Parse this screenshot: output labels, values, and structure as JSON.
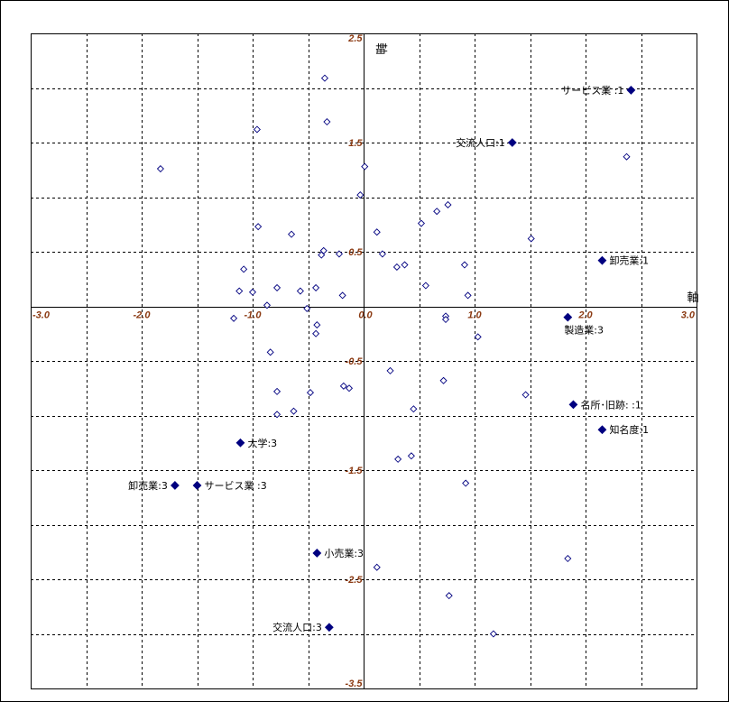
{
  "chart_data": {
    "type": "scatter",
    "xlim": [
      -3.0,
      3.0
    ],
    "ylim": [
      -3.5,
      2.5
    ],
    "grid": true,
    "xlabel": "軸",
    "ylabel": "軸",
    "x_ticks": [
      {
        "value": -3.0,
        "label": "-3.0"
      },
      {
        "value": -2.0,
        "label": "-2.0"
      },
      {
        "value": -1.0,
        "label": "-1.0"
      },
      {
        "value": 0.0,
        "label": "0.0"
      },
      {
        "value": 1.0,
        "label": "1.0"
      },
      {
        "value": 2.0,
        "label": "2.0"
      },
      {
        "value": 3.0,
        "label": "3.0"
      }
    ],
    "y_ticks": [
      {
        "value": 2.5,
        "label": "2.5"
      },
      {
        "value": 1.5,
        "label": "1.5"
      },
      {
        "value": 0.5,
        "label": "0.5"
      },
      {
        "value": -0.5,
        "label": "-0.5"
      },
      {
        "value": -1.5,
        "label": "-1.5"
      },
      {
        "value": -2.5,
        "label": "-2.5"
      },
      {
        "value": -3.5,
        "label": "-3.5"
      }
    ],
    "series": [
      {
        "marker": "filled-diamond",
        "color": "#000080",
        "points": [
          {
            "x": 2.41,
            "y": 1.98,
            "label": "サービス業 :1",
            "label_side": "left"
          },
          {
            "x": 1.34,
            "y": 1.5,
            "label": "交流人口:1",
            "label_side": "left"
          },
          {
            "x": 2.15,
            "y": 0.42,
            "label": "卸売業:1",
            "label_side": "right"
          },
          {
            "x": 1.84,
            "y": -0.1,
            "label": "製造業:3",
            "label_side": "below"
          },
          {
            "x": 1.89,
            "y": -0.9,
            "label": "名所･旧跡: :1",
            "label_side": "right"
          },
          {
            "x": 2.15,
            "y": -1.13,
            "label": "知名度:1",
            "label_side": "right"
          },
          {
            "x": -1.11,
            "y": -1.25,
            "label": "大学:3",
            "label_side": "right"
          },
          {
            "x": -1.7,
            "y": -1.64,
            "label": "卸売業:3",
            "label_side": "left"
          },
          {
            "x": -1.5,
            "y": -1.64,
            "label": "サービス業 :3",
            "label_side": "right"
          },
          {
            "x": -0.42,
            "y": -2.26,
            "label": "小売業:3",
            "label_side": "right"
          },
          {
            "x": -0.31,
            "y": -2.94,
            "label": "交流人口:3",
            "label_side": "left"
          }
        ]
      },
      {
        "marker": "open-diamond",
        "color": "#000080",
        "points": [
          {
            "x": -0.35,
            "y": 2.09
          },
          {
            "x": -0.33,
            "y": 1.69
          },
          {
            "x": -0.96,
            "y": 1.62
          },
          {
            "x": -1.83,
            "y": 1.26
          },
          {
            "x": 0.01,
            "y": 1.28
          },
          {
            "x": -0.03,
            "y": 1.02
          },
          {
            "x": 2.37,
            "y": 1.37
          },
          {
            "x": -0.95,
            "y": 0.73
          },
          {
            "x": -0.65,
            "y": 0.66
          },
          {
            "x": 0.52,
            "y": 0.76
          },
          {
            "x": 0.66,
            "y": 0.87
          },
          {
            "x": 0.76,
            "y": 0.93
          },
          {
            "x": 0.12,
            "y": 0.68
          },
          {
            "x": 1.51,
            "y": 0.62
          },
          {
            "x": -0.36,
            "y": 0.51
          },
          {
            "x": -0.38,
            "y": 0.47
          },
          {
            "x": -0.22,
            "y": 0.48
          },
          {
            "x": 0.17,
            "y": 0.48
          },
          {
            "x": 0.3,
            "y": 0.36
          },
          {
            "x": 0.37,
            "y": 0.38
          },
          {
            "x": 0.91,
            "y": 0.38
          },
          {
            "x": -1.08,
            "y": 0.34
          },
          {
            "x": -1.12,
            "y": 0.14
          },
          {
            "x": -1.0,
            "y": 0.13
          },
          {
            "x": -0.78,
            "y": 0.17
          },
          {
            "x": -0.57,
            "y": 0.14
          },
          {
            "x": -0.43,
            "y": 0.17
          },
          {
            "x": -0.19,
            "y": 0.1
          },
          {
            "x": 0.56,
            "y": 0.19
          },
          {
            "x": 0.94,
            "y": 0.1
          },
          {
            "x": -0.87,
            "y": 0.01
          },
          {
            "x": -0.51,
            "y": -0.02
          },
          {
            "x": -1.17,
            "y": -0.11
          },
          {
            "x": 0.74,
            "y": -0.09
          },
          {
            "x": 0.74,
            "y": -0.12
          },
          {
            "x": -0.42,
            "y": -0.17
          },
          {
            "x": -0.43,
            "y": -0.25
          },
          {
            "x": 1.03,
            "y": -0.28
          },
          {
            "x": -0.84,
            "y": -0.42
          },
          {
            "x": 0.24,
            "y": -0.59
          },
          {
            "x": 0.72,
            "y": -0.68
          },
          {
            "x": -0.18,
            "y": -0.73
          },
          {
            "x": -0.13,
            "y": -0.75
          },
          {
            "x": -0.78,
            "y": -0.78
          },
          {
            "x": -0.48,
            "y": -0.79
          },
          {
            "x": 1.46,
            "y": -0.81
          },
          {
            "x": -0.78,
            "y": -0.99
          },
          {
            "x": -0.63,
            "y": -0.96
          },
          {
            "x": 0.45,
            "y": -0.94
          },
          {
            "x": 0.43,
            "y": -1.37
          },
          {
            "x": 0.31,
            "y": -1.4
          },
          {
            "x": 0.92,
            "y": -1.62
          },
          {
            "x": 1.84,
            "y": -2.31
          },
          {
            "x": 0.12,
            "y": -2.39
          },
          {
            "x": 0.77,
            "y": -2.65
          },
          {
            "x": 1.17,
            "y": -3.0
          }
        ]
      }
    ]
  }
}
